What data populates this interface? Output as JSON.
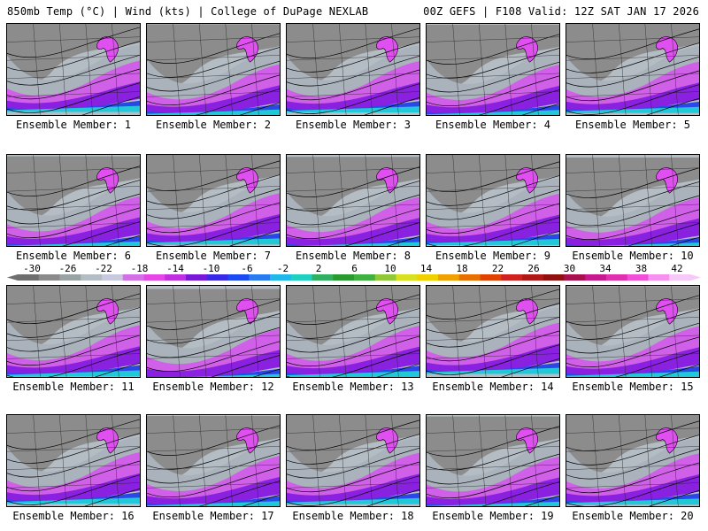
{
  "header": {
    "left": "850mb Temp (°C) | Wind (kts) | College of DuPage NEXLAB",
    "right": "00Z GEFS | F108 Valid: 12Z SAT JAN 17 2026"
  },
  "colorbar": {
    "labels": [
      "-30",
      "-26",
      "-22",
      "-18",
      "-14",
      "-10",
      "-6",
      "-2",
      "2",
      "6",
      "10",
      "14",
      "18",
      "22",
      "26",
      "30",
      "34",
      "38",
      "42"
    ],
    "colors": [
      "#6e6e6e",
      "#8a8a8a",
      "#9aa3a3",
      "#b4bcc4",
      "#c8c8de",
      "#d470e6",
      "#e646e6",
      "#c030e0",
      "#7a18d8",
      "#3a2ae6",
      "#1a4af0",
      "#2a7af0",
      "#20b8e8",
      "#20d0c0",
      "#30b060",
      "#2a9a30",
      "#40b040",
      "#90c838",
      "#d8e020",
      "#f0d000",
      "#f0a000",
      "#e87000",
      "#e04000",
      "#d02020",
      "#b01818",
      "#901010",
      "#a81050",
      "#c81890",
      "#e030b0",
      "#f050d8",
      "#f890f0",
      "#f8c8f8"
    ]
  },
  "members": [
    {
      "caption": "Ensemble Member: 1"
    },
    {
      "caption": "Ensemble Member: 2"
    },
    {
      "caption": "Ensemble Member: 3"
    },
    {
      "caption": "Ensemble Member: 4"
    },
    {
      "caption": "Ensemble Member: 5"
    },
    {
      "caption": "Ensemble Member: 6"
    },
    {
      "caption": "Ensemble Member: 7"
    },
    {
      "caption": "Ensemble Member: 8"
    },
    {
      "caption": "Ensemble Member: 9"
    },
    {
      "caption": "Ensemble Member: 10"
    },
    {
      "caption": "Ensemble Member: 11"
    },
    {
      "caption": "Ensemble Member: 12"
    },
    {
      "caption": "Ensemble Member: 13"
    },
    {
      "caption": "Ensemble Member: 14"
    },
    {
      "caption": "Ensemble Member: 15"
    },
    {
      "caption": "Ensemble Member: 16"
    },
    {
      "caption": "Ensemble Member: 17"
    },
    {
      "caption": "Ensemble Member: 18"
    },
    {
      "caption": "Ensemble Member: 19"
    },
    {
      "caption": "Ensemble Member: 20"
    }
  ]
}
